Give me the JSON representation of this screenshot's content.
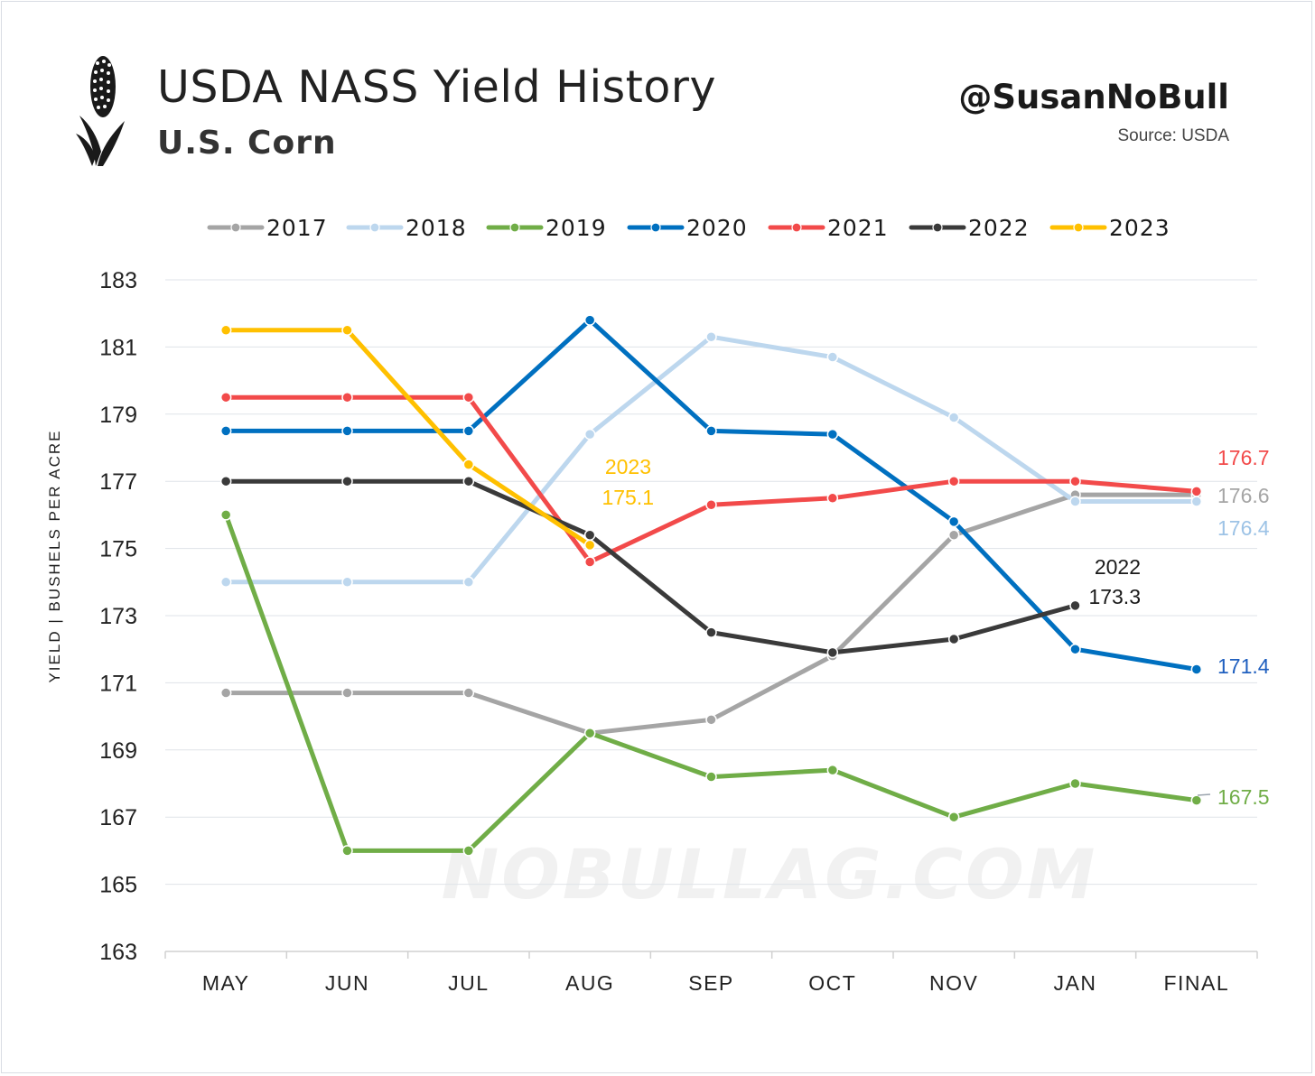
{
  "header": {
    "title": "USDA NASS Yield History",
    "subtitle": "U.S. Corn",
    "handle": "@SusanNoBull",
    "source": "Source: USDA",
    "logo_icon": "corn-icon"
  },
  "watermark": "NOBULLAG.COM",
  "chart_data": {
    "type": "line",
    "title": "USDA NASS Yield History",
    "subtitle": "U.S. Corn",
    "ylabel": "YIELD  |  BUSHELS PER ACRE",
    "xlabel": "",
    "categories": [
      "MAY",
      "JUN",
      "JUL",
      "AUG",
      "SEP",
      "OCT",
      "NOV",
      "JAN",
      "FINAL"
    ],
    "ylim": [
      163,
      183
    ],
    "yticks": [
      163,
      165,
      167,
      169,
      171,
      173,
      175,
      177,
      179,
      181,
      183
    ],
    "grid": "horizontal",
    "legend_position": "top",
    "series": [
      {
        "name": "2017",
        "color": "#a5a5a5",
        "values": [
          170.7,
          170.7,
          170.7,
          169.5,
          169.9,
          171.8,
          175.4,
          176.6,
          176.6
        ]
      },
      {
        "name": "2018",
        "color": "#bdd7ee",
        "values": [
          174.0,
          174.0,
          174.0,
          178.4,
          181.3,
          180.7,
          178.9,
          176.4,
          176.4
        ]
      },
      {
        "name": "2019",
        "color": "#70ad47",
        "values": [
          176.0,
          166.0,
          166.0,
          169.5,
          168.2,
          168.4,
          167.0,
          168.0,
          167.5
        ]
      },
      {
        "name": "2020",
        "color": "#0070c0",
        "values": [
          178.5,
          178.5,
          178.5,
          181.8,
          178.5,
          178.4,
          175.8,
          172.0,
          171.4
        ]
      },
      {
        "name": "2021",
        "color": "#f24a4a",
        "values": [
          179.5,
          179.5,
          179.5,
          174.6,
          176.3,
          176.5,
          177.0,
          177.0,
          176.7
        ]
      },
      {
        "name": "2022",
        "color": "#3a3a3a",
        "values": [
          177.0,
          177.0,
          177.0,
          175.4,
          172.5,
          171.9,
          172.3,
          173.3,
          null
        ]
      },
      {
        "name": "2023",
        "color": "#ffc000",
        "values": [
          181.5,
          181.5,
          177.5,
          175.1,
          null,
          null,
          null,
          null,
          null
        ]
      }
    ],
    "annotations": [
      {
        "series": "2021",
        "text": "176.7",
        "color": "#f24a4a"
      },
      {
        "series": "2017",
        "text": "176.6",
        "color": "#a5a5a5"
      },
      {
        "series": "2018",
        "text": "176.4",
        "color": "#9dc3e6"
      },
      {
        "series": "2020",
        "text": "171.4",
        "color": "#1f5fbf"
      },
      {
        "series": "2019",
        "text": "167.5",
        "color": "#70ad47"
      },
      {
        "series": "2022",
        "text": "2022",
        "color": "#1a1a1a"
      },
      {
        "series": "2022",
        "text": "173.3",
        "color": "#1a1a1a"
      },
      {
        "series": "2023",
        "text": "2023",
        "color": "#ffc000"
      },
      {
        "series": "2023",
        "text": "175.1",
        "color": "#ffc000"
      }
    ]
  }
}
